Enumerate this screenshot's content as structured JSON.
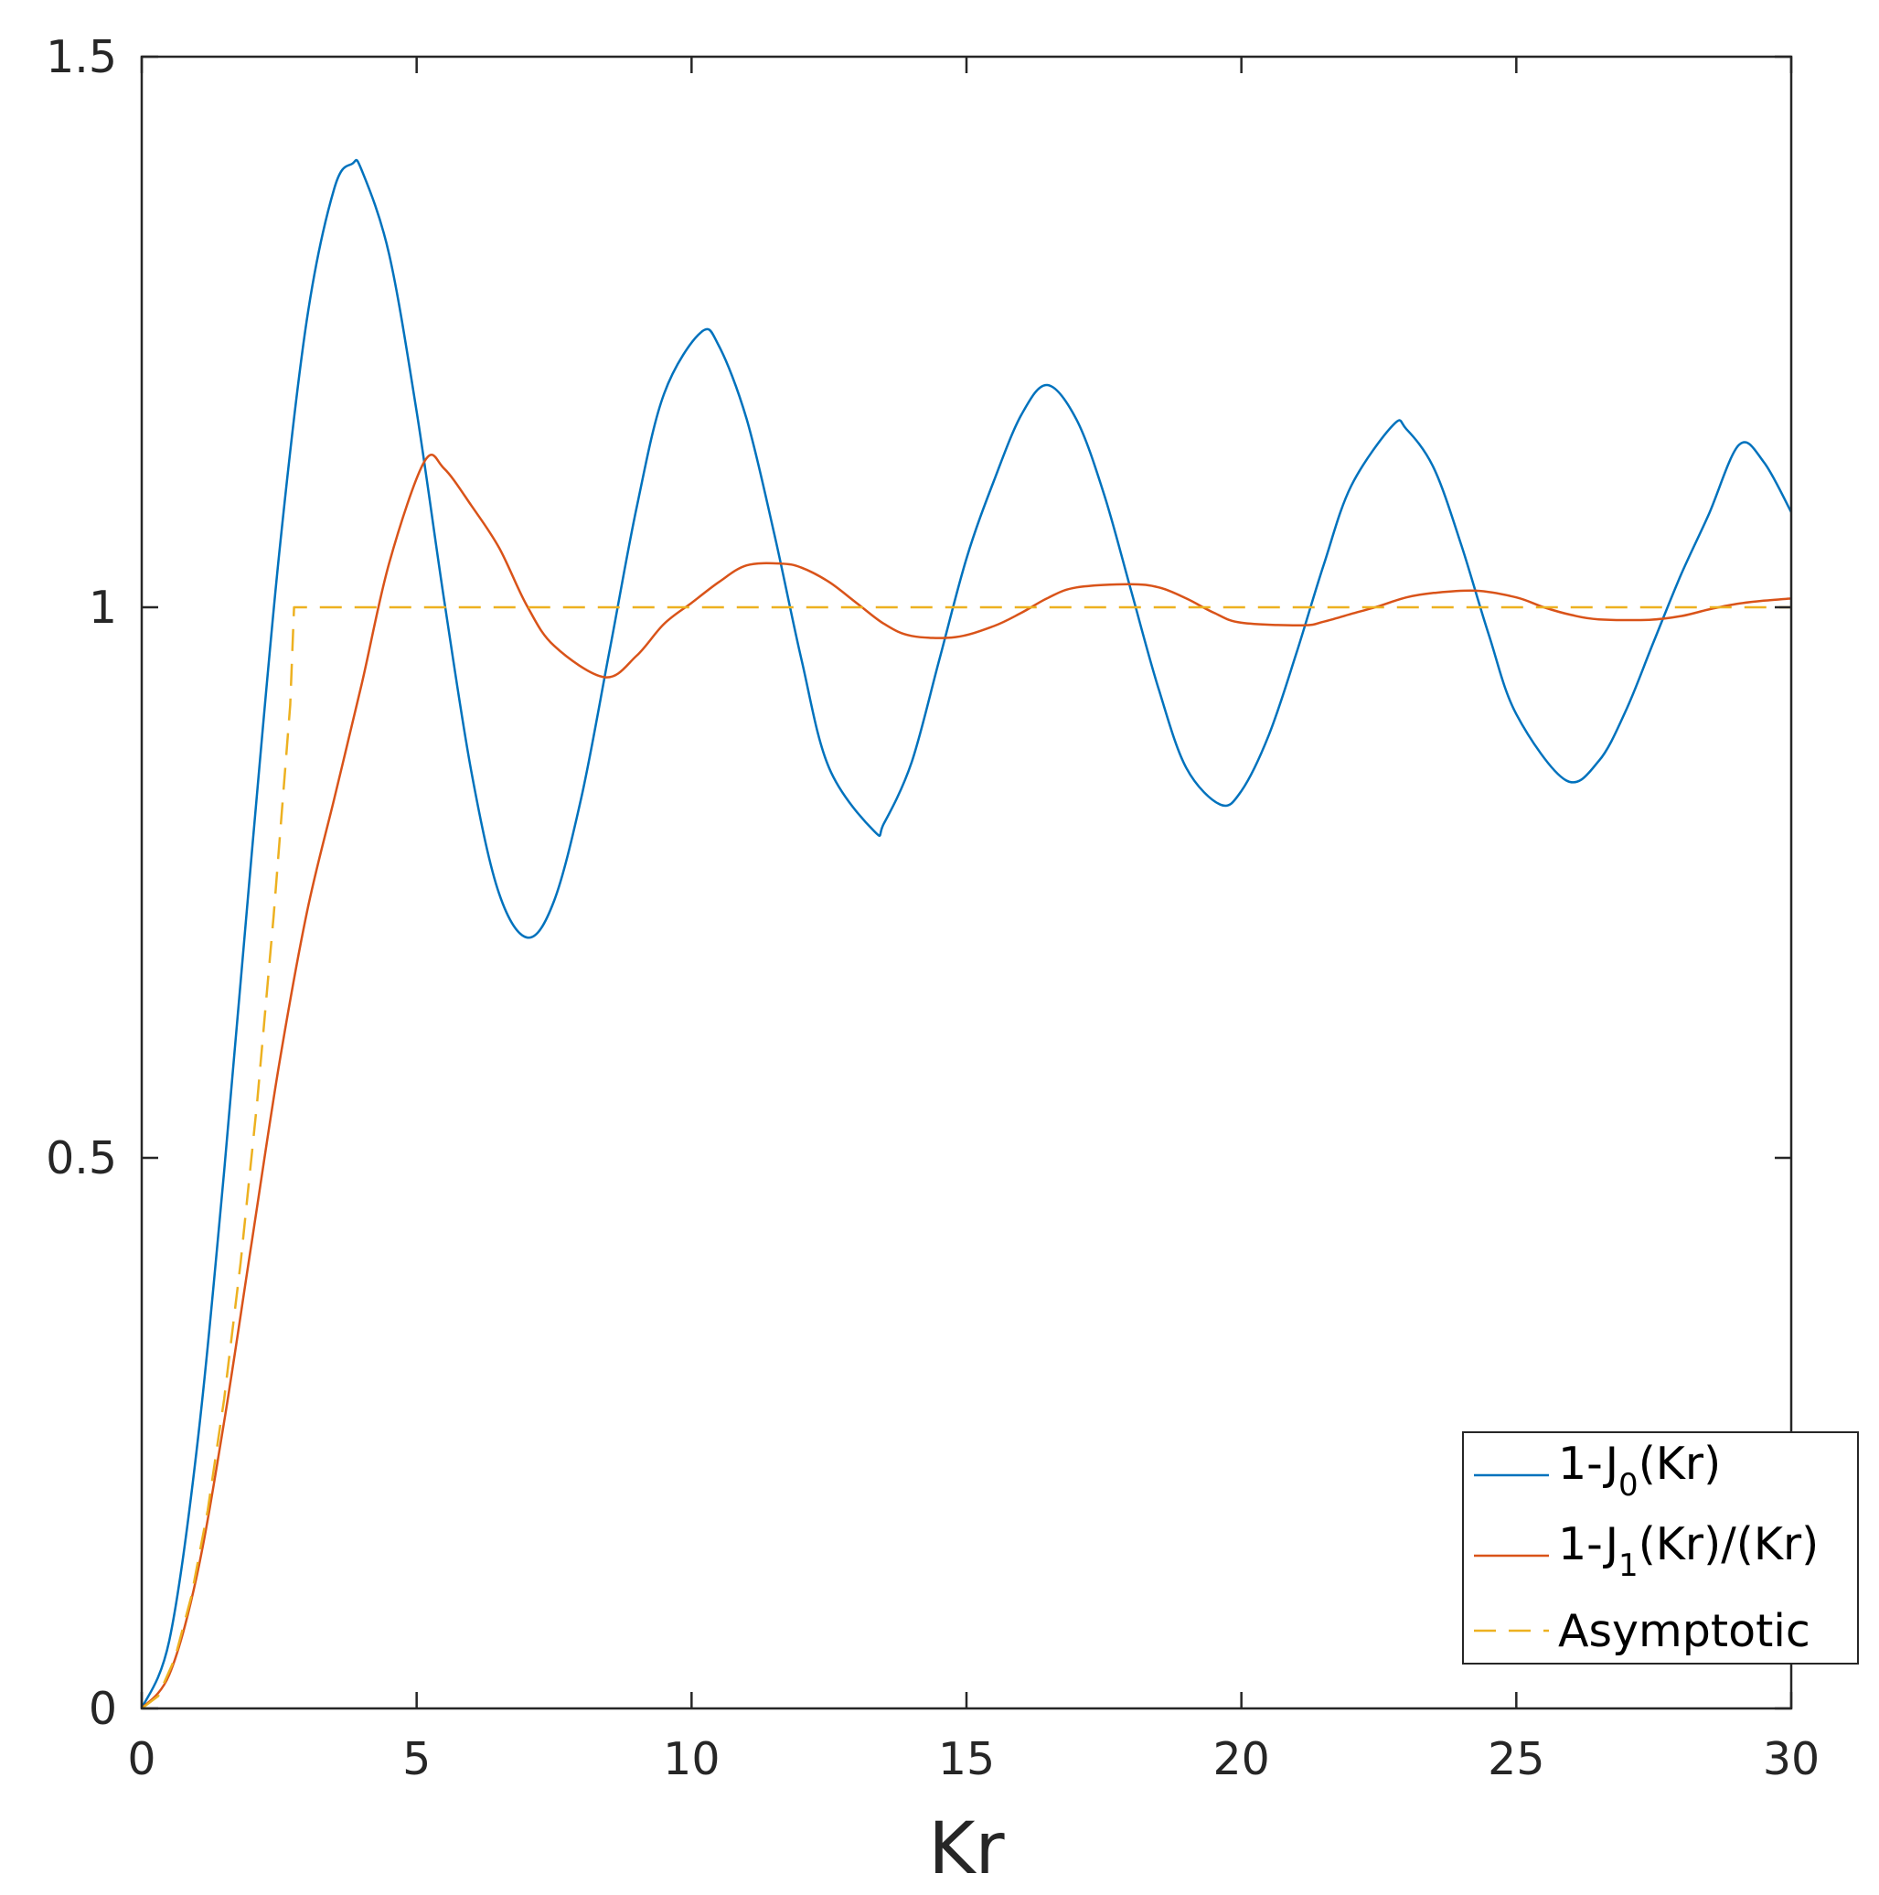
{
  "chart_data": {
    "type": "line",
    "title": "",
    "xlabel": "Kr",
    "ylabel": "",
    "xlim": [
      0,
      30
    ],
    "ylim": [
      0,
      1.5
    ],
    "xticks": [
      0,
      5,
      10,
      15,
      20,
      25,
      30
    ],
    "xtick_labels": [
      "0",
      "5",
      "10",
      "15",
      "20",
      "25",
      "30"
    ],
    "yticks": [
      0,
      0.5,
      1,
      1.5
    ],
    "ytick_labels": [
      "0",
      "0.5",
      "1",
      "1.5"
    ],
    "grid": false,
    "legend": {
      "position": "bottom-right",
      "entries": [
        {
          "prefix": "1-J",
          "sub": "0",
          "suffix": "(Kr)"
        },
        {
          "prefix": "1-J",
          "sub": "1",
          "suffix": "(Kr)/(Kr)"
        },
        {
          "prefix": "Asymptotic",
          "sub": "",
          "suffix": ""
        }
      ]
    },
    "series": [
      {
        "name": "1-J0(Kr)",
        "color": "#0072bd",
        "style": "solid",
        "x": [
          0,
          0.5,
          1,
          1.5,
          2,
          2.5,
          3,
          3.5,
          3.83,
          4,
          4.5,
          5,
          5.5,
          6,
          6.5,
          7.02,
          7.5,
          8,
          8.5,
          9,
          9.5,
          10.17,
          10.5,
          11,
          11.5,
          12,
          12.5,
          13.32,
          13.5,
          14,
          14.5,
          15,
          15.5,
          16,
          16.47,
          17,
          17.5,
          18,
          18.5,
          19,
          19.62,
          20,
          20.5,
          21,
          21.5,
          22,
          22.76,
          23,
          23.5,
          24,
          24.5,
          25,
          25.9,
          26.5,
          27,
          27.5,
          28,
          28.5,
          29.05,
          29.5,
          30
        ],
        "y": [
          0,
          0.0615,
          0.2348,
          0.4884,
          0.7761,
          1.0484,
          1.2601,
          1.3801,
          1.4028,
          1.3971,
          1.3205,
          1.1776,
          1.0068,
          0.8494,
          0.7399,
          0.7,
          0.7334,
          0.8283,
          0.9581,
          1.0903,
          1.1939,
          1.2497,
          1.2371,
          1.1712,
          1.0677,
          0.9523,
          0.8542,
          0.7967,
          0.8038,
          0.8589,
          0.9512,
          1.0443,
          1.115,
          1.1749,
          1.2018,
          1.1705,
          1.103,
          1.014,
          0.925,
          0.854,
          0.8208,
          0.8332,
          0.884,
          0.9582,
          1.039,
          1.1105,
          1.1655,
          1.1618,
          1.1264,
          1.0565,
          0.975,
          0.903,
          0.8429,
          0.8604,
          0.907,
          0.9689,
          1.0301,
          1.0843,
          1.1475,
          1.132,
          1.0864
        ]
      },
      {
        "name": "1-J1(Kr)/(Kr)",
        "color": "#d95319",
        "style": "solid",
        "x": [
          0,
          0.5,
          1,
          1.5,
          2,
          2.5,
          3,
          3.5,
          4,
          4.5,
          5.14,
          5.5,
          6,
          6.5,
          7,
          7.5,
          8.42,
          9,
          9.5,
          10,
          10.5,
          11,
          11.62,
          12,
          12.5,
          13,
          13.5,
          14,
          14.8,
          15.5,
          16,
          16.5,
          17,
          17.96,
          18.5,
          19,
          19.5,
          20,
          21.12,
          21.5,
          22,
          22.5,
          23,
          23.5,
          24.27,
          25,
          25.5,
          26,
          26.5,
          27.42,
          28,
          28.5,
          29,
          29.5,
          30
        ],
        "y": [
          0,
          0.0306,
          0.1199,
          0.2607,
          0.4233,
          0.585,
          0.722,
          0.826,
          0.93,
          1.04,
          1.1323,
          1.126,
          1.092,
          1.054,
          1.002,
          0.965,
          0.9365,
          0.956,
          0.985,
          1.004,
          1.023,
          1.038,
          1.0397,
          1.036,
          1.023,
          1.004,
          0.985,
          0.974,
          0.9729,
          0.983,
          0.995,
          1.009,
          1.018,
          1.021,
          1.018,
          1.008,
          0.995,
          0.986,
          0.9836,
          0.987,
          0.994,
          1.001,
          1.009,
          1.013,
          1.015,
          1.009,
          1.0,
          0.993,
          0.989,
          0.9886,
          0.992,
          0.998,
          1.003,
          1.006,
          1.008
        ]
      },
      {
        "name": "Asymptotic",
        "color": "#edb120",
        "style": "dashed",
        "x": [
          0,
          0.3,
          0.6,
          0.9,
          1.2,
          1.5,
          1.8,
          2.1,
          2.4,
          2.7,
          2.77,
          3.5,
          5,
          10,
          15,
          20,
          25,
          30
        ],
        "y": [
          0,
          0.0112,
          0.045,
          0.1012,
          0.18,
          0.2812,
          0.405,
          0.5512,
          0.72,
          0.9112,
          1.0,
          1.0,
          1.0,
          1.0,
          1.0,
          1.0,
          1.0,
          1.0
        ]
      }
    ]
  }
}
